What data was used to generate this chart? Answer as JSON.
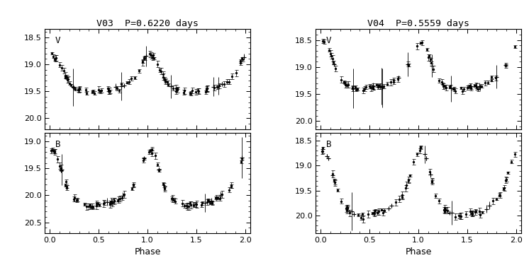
{
  "v03_title": "V03  P=0.6220 days",
  "v04_title": "V04  P=0.5559 days",
  "xlabel": "Phase",
  "v03_V_ylim": [
    20.2,
    18.35
  ],
  "v03_V_yticks": [
    18.5,
    19.0,
    19.5,
    20.0
  ],
  "v03_B_ylim": [
    20.7,
    18.85
  ],
  "v03_B_yticks": [
    19.0,
    19.5,
    20.0,
    20.5
  ],
  "v04_V_ylim": [
    20.15,
    18.3
  ],
  "v04_V_yticks": [
    18.5,
    19.0,
    19.5,
    20.0
  ],
  "v04_B_ylim": [
    20.35,
    18.35
  ],
  "v04_B_yticks": [
    18.5,
    19.0,
    19.5,
    20.0
  ],
  "xlim": [
    -0.05,
    2.05
  ],
  "xticks": [
    0.0,
    0.5,
    1.0,
    1.5,
    2.0
  ]
}
